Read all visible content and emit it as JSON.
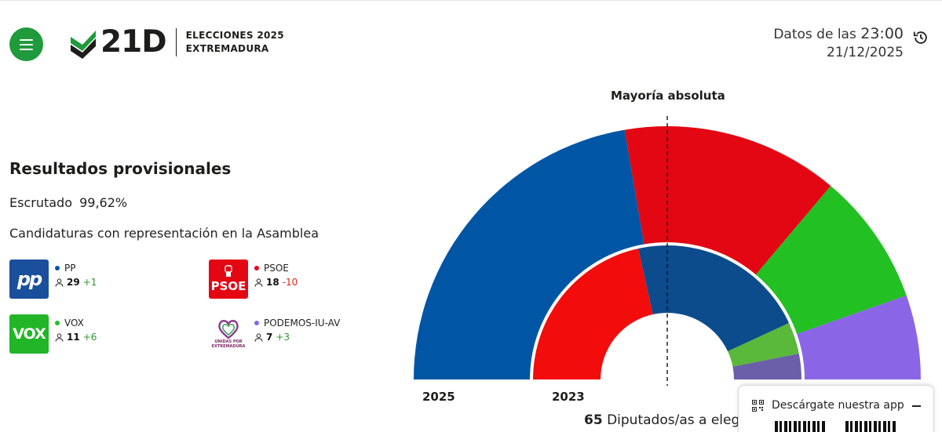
{
  "header": {
    "logo_text": "21D",
    "logo_sub_1": "ELECCIONES 2025",
    "logo_sub_2": "EXTREMADURA",
    "datos_prefix": "Datos de las",
    "datos_time": "23:00",
    "datos_date": "21/12/2025"
  },
  "results": {
    "title": "Resultados provisionales",
    "escrutado_label": "Escrutado",
    "escrutado_value": "99,62%",
    "candidaturas_label": "Candidaturas con representación en la Asamblea"
  },
  "parties": [
    {
      "name": "PP",
      "logo_text": "pp",
      "seats": "29",
      "diff": "+1",
      "color": "#0056a4"
    },
    {
      "name": "PSOE",
      "logo_text": "PSOE",
      "seats": "18",
      "diff": "-10",
      "color": "#e30613"
    },
    {
      "name": "VOX",
      "logo_text": "VOX",
      "seats": "11",
      "diff": "+6",
      "color": "#22c022"
    },
    {
      "name": "PODEMOS-IU-AV",
      "logo_text": "UNIDAS POR EXTREMADURA",
      "seats": "7",
      "diff": "+3",
      "color": "#8a66e6"
    }
  ],
  "chart_data": {
    "type": "pie",
    "subtype": "hemicycle",
    "title": "Mayoría absoluta",
    "total_label_number": "65",
    "total_label_text": "Diputados/as a elegir",
    "total_seats": 65,
    "majority": 33,
    "series": [
      {
        "name": "2025",
        "slices": [
          {
            "party": "PP",
            "seats": 29,
            "color": "#0056a4"
          },
          {
            "party": "PSOE",
            "seats": 18,
            "color": "#e30613"
          },
          {
            "party": "VOX",
            "seats": 11,
            "color": "#22c022"
          },
          {
            "party": "PODEMOS-IU-AV",
            "seats": 7,
            "color": "#8a66e6"
          }
        ]
      },
      {
        "name": "2023",
        "slices": [
          {
            "party": "PSOE",
            "seats": 28,
            "color": "#f20c0c"
          },
          {
            "party": "PP",
            "seats": 28,
            "color": "#0d4c8c"
          },
          {
            "party": "VOX",
            "seats": 5,
            "color": "#5ab83a"
          },
          {
            "party": "PODEMOS-IU-AV",
            "seats": 4,
            "color": "#6a5fa8"
          }
        ]
      }
    ]
  },
  "app_panel": {
    "text": "Descárgate nuestra app"
  }
}
